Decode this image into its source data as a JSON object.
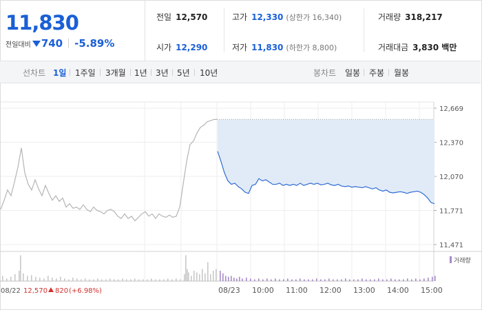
{
  "price": {
    "current": "11,830",
    "change_label": "전일대비",
    "change_value": "740",
    "change_pct": "-5.89%"
  },
  "stats": {
    "prev_close_label": "전일",
    "prev_close": "12,570",
    "high_label": "고가",
    "high": "12,330",
    "upper_limit": "(상한가 16,340)",
    "volume_label": "거래량",
    "volume": "318,217",
    "open_label": "시가",
    "open": "12,290",
    "low_label": "저가",
    "low": "11,830",
    "lower_limit": "(하한가 8,800)",
    "trade_value_label": "거래대금",
    "trade_value": "3,830 백만"
  },
  "tabs": {
    "line_title": "선차트",
    "line": [
      "1일",
      "1주일",
      "3개월",
      "1년",
      "3년",
      "5년",
      "10년"
    ],
    "active": "1일",
    "candle_title": "봉차트",
    "candle": [
      "일봉",
      "주봉",
      "월봉"
    ]
  },
  "chart_data": {
    "type": "line",
    "ylim": [
      11471,
      12669
    ],
    "y_ticks": [
      "12,669",
      "12,370",
      "12,070",
      "11,771",
      "11,471"
    ],
    "x_ticks": [
      "08/23",
      "10:00",
      "11:00",
      "12:00",
      "13:00",
      "14:00",
      "15:00"
    ],
    "prev_day_label": "08/22",
    "prev_day_close": "12,570",
    "prev_day_change": "820",
    "prev_day_change_pct": "(+6.98%)",
    "volume_legend": "거래량",
    "series": [
      {
        "x": [
          0,
          5,
          10,
          15,
          20,
          25,
          30,
          35,
          40,
          45,
          50,
          55,
          60,
          65,
          70,
          75,
          80,
          85,
          90,
          95,
          100,
          105,
          110,
          115,
          120,
          125,
          130,
          135,
          140,
          145,
          150,
          155,
          160,
          165,
          170,
          175,
          180,
          185,
          190,
          195,
          200,
          205,
          210,
          215,
          220,
          225,
          230,
          235,
          240,
          245,
          250,
          255,
          260,
          265,
          270,
          275,
          280,
          285,
          290,
          295,
          300,
          305,
          310,
          315
        ],
        "values": [
          11780,
          11860,
          11950,
          11900,
          12020,
          12150,
          12320,
          12100,
          12000,
          11950,
          12040,
          11960,
          11900,
          11990,
          11920,
          11860,
          11900,
          11850,
          11880,
          11800,
          11830,
          11790,
          11800,
          11780,
          11820,
          11780,
          11760,
          11800,
          11770,
          11760,
          11740,
          11770,
          11780,
          11760,
          11720,
          11700,
          11740,
          11700,
          11720,
          11680,
          11710,
          11740,
          11760,
          11720,
          11740,
          11700,
          11740,
          11720,
          11710,
          11730,
          11710,
          11720,
          11800,
          12000,
          12200,
          12350,
          12380,
          12450,
          12500,
          12520,
          12550,
          12560,
          12570,
          12570
        ]
      },
      {
        "x": [
          315,
          320,
          325,
          330,
          335,
          340,
          345,
          350,
          355,
          360,
          365,
          370,
          375,
          380,
          385,
          390,
          395,
          400,
          405,
          410,
          415,
          420,
          425,
          430,
          435,
          440,
          445,
          450,
          455,
          460,
          465,
          470,
          475,
          480,
          485,
          490,
          495,
          500,
          505,
          510,
          515,
          520,
          525,
          530,
          535,
          540,
          545,
          550,
          555,
          560,
          565,
          570,
          575,
          580,
          585,
          590,
          595,
          600,
          605,
          610,
          615,
          620,
          625,
          630
        ],
        "values": [
          12290,
          12200,
          12100,
          12030,
          12000,
          12010,
          11980,
          11960,
          11930,
          11920,
          11990,
          12000,
          12050,
          12030,
          12040,
          12020,
          12000,
          12000,
          12010,
          11990,
          12000,
          11990,
          12000,
          11990,
          12010,
          11990,
          12000,
          12010,
          12000,
          12010,
          11995,
          12000,
          12010,
          11995,
          11990,
          12000,
          11985,
          11980,
          11985,
          11975,
          11980,
          11975,
          11970,
          11980,
          11970,
          11960,
          11970,
          11950,
          11940,
          11950,
          11930,
          11925,
          11930,
          11935,
          11930,
          11920,
          11930,
          11935,
          11940,
          11930,
          11910,
          11880,
          11840,
          11830
        ]
      }
    ],
    "volume": {
      "x": [
        2,
        8,
        14,
        20,
        26,
        28,
        32,
        38,
        44,
        50,
        56,
        62,
        68,
        74,
        80,
        86,
        92,
        98,
        104,
        110,
        116,
        122,
        128,
        134,
        140,
        146,
        152,
        158,
        164,
        170,
        176,
        182,
        188,
        194,
        200,
        206,
        212,
        218,
        224,
        230,
        236,
        242,
        248,
        254,
        260,
        266,
        268,
        270,
        272,
        276,
        280,
        284,
        288,
        292,
        296,
        300,
        304,
        308,
        312,
        318,
        322,
        326,
        330,
        334,
        338,
        342,
        346,
        350,
        356,
        362,
        368,
        374,
        380,
        386,
        392,
        398,
        404,
        410,
        416,
        422,
        428,
        434,
        440,
        446,
        452,
        458,
        464,
        470,
        476,
        482,
        488,
        494,
        500,
        506,
        512,
        518,
        524,
        530,
        536,
        542,
        548,
        554,
        560,
        566,
        572,
        578,
        584,
        590,
        596,
        602,
        608,
        614,
        620,
        626,
        630
      ],
      "values": [
        6,
        3,
        5,
        8,
        12,
        30,
        9,
        6,
        7,
        5,
        4,
        3,
        6,
        4,
        3,
        5,
        3,
        2,
        4,
        3,
        2,
        3,
        2,
        2,
        3,
        2,
        2,
        3,
        2,
        2,
        3,
        2,
        2,
        3,
        2,
        2,
        2,
        3,
        2,
        2,
        2,
        3,
        2,
        3,
        2,
        8,
        30,
        14,
        10,
        6,
        12,
        10,
        8,
        14,
        9,
        22,
        8,
        12,
        14,
        12,
        9,
        6,
        5,
        6,
        4,
        3,
        5,
        3,
        4,
        3,
        2,
        3,
        2,
        3,
        2,
        3,
        2,
        2,
        3,
        2,
        2,
        3,
        2,
        2,
        2,
        3,
        2,
        2,
        3,
        2,
        2,
        2,
        3,
        2,
        2,
        2,
        3,
        2,
        2,
        2,
        3,
        2,
        2,
        3,
        2,
        2,
        2,
        3,
        2,
        3,
        2,
        3,
        4,
        5,
        6
      ]
    }
  }
}
